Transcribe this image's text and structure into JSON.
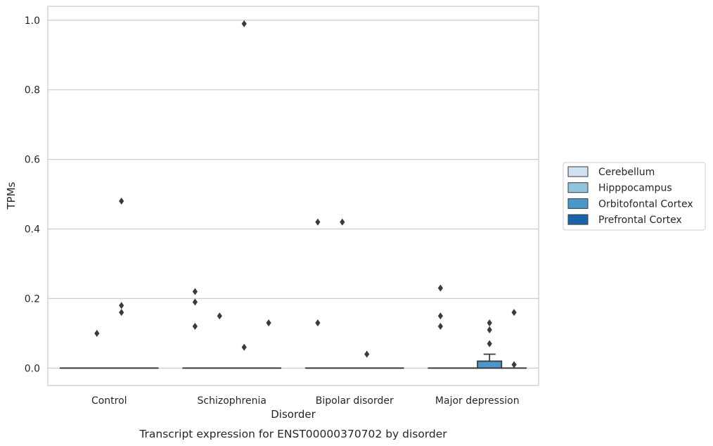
{
  "chart_data": {
    "type": "box",
    "title": "Transcript expression for ENST00000370702 by disorder",
    "xlabel": "Disorder",
    "ylabel": "TPMs",
    "ylim": [
      -0.05,
      1.04
    ],
    "yticks": [
      "0.0",
      "0.2",
      "0.4",
      "0.6",
      "0.8",
      "1.0"
    ],
    "grid": true,
    "legend_position": "right",
    "categories": [
      "Control",
      "Schizophrenia",
      "Bipolar disorder",
      "Major depression"
    ],
    "series": [
      {
        "name": "Cerebellum",
        "color": "#cfe1f2"
      },
      {
        "name": "Hipppocampus",
        "color": "#93c4de"
      },
      {
        "name": "Orbitofontal Cortex",
        "color": "#4a98c9"
      },
      {
        "name": "Prefrontal Cortex",
        "color": "#1764ab"
      }
    ],
    "boxes": [
      {
        "category": 0,
        "series": 0,
        "q1": 0,
        "median": 0,
        "q3": 0,
        "whisker_low": 0,
        "whisker_high": 0,
        "outliers": []
      },
      {
        "category": 0,
        "series": 1,
        "q1": 0,
        "median": 0,
        "q3": 0,
        "whisker_low": 0,
        "whisker_high": 0,
        "outliers": [
          0.1
        ]
      },
      {
        "category": 0,
        "series": 2,
        "q1": 0,
        "median": 0,
        "q3": 0,
        "whisker_low": 0,
        "whisker_high": 0,
        "outliers": [
          0.48,
          0.18,
          0.16
        ]
      },
      {
        "category": 0,
        "series": 3,
        "q1": 0,
        "median": 0,
        "q3": 0,
        "whisker_low": 0,
        "whisker_high": 0,
        "outliers": []
      },
      {
        "category": 1,
        "series": 0,
        "q1": 0,
        "median": 0,
        "q3": 0,
        "whisker_low": 0,
        "whisker_high": 0,
        "outliers": [
          0.22,
          0.19,
          0.12
        ]
      },
      {
        "category": 1,
        "series": 1,
        "q1": 0,
        "median": 0,
        "q3": 0,
        "whisker_low": 0,
        "whisker_high": 0,
        "outliers": [
          0.15
        ]
      },
      {
        "category": 1,
        "series": 2,
        "q1": 0,
        "median": 0,
        "q3": 0,
        "whisker_low": 0,
        "whisker_high": 0,
        "outliers": [
          0.99,
          0.06
        ]
      },
      {
        "category": 1,
        "series": 3,
        "q1": 0,
        "median": 0,
        "q3": 0,
        "whisker_low": 0,
        "whisker_high": 0,
        "outliers": [
          0.13
        ]
      },
      {
        "category": 2,
        "series": 0,
        "q1": 0,
        "median": 0,
        "q3": 0,
        "whisker_low": 0,
        "whisker_high": 0,
        "outliers": [
          0.42,
          0.13
        ]
      },
      {
        "category": 2,
        "series": 1,
        "q1": 0,
        "median": 0,
        "q3": 0,
        "whisker_low": 0,
        "whisker_high": 0,
        "outliers": [
          0.42
        ]
      },
      {
        "category": 2,
        "series": 2,
        "q1": 0,
        "median": 0,
        "q3": 0,
        "whisker_low": 0,
        "whisker_high": 0,
        "outliers": [
          0.04
        ]
      },
      {
        "category": 2,
        "series": 3,
        "q1": 0,
        "median": 0,
        "q3": 0,
        "whisker_low": 0,
        "whisker_high": 0,
        "outliers": []
      },
      {
        "category": 3,
        "series": 0,
        "q1": 0,
        "median": 0,
        "q3": 0,
        "whisker_low": 0,
        "whisker_high": 0,
        "outliers": [
          0.23,
          0.15,
          0.12
        ]
      },
      {
        "category": 3,
        "series": 1,
        "q1": 0,
        "median": 0,
        "q3": 0,
        "whisker_low": 0,
        "whisker_high": 0,
        "outliers": []
      },
      {
        "category": 3,
        "series": 2,
        "q1": 0,
        "median": 0,
        "q3": 0.02,
        "whisker_low": 0,
        "whisker_high": 0.04,
        "outliers": [
          0.13,
          0.11,
          0.07
        ]
      },
      {
        "category": 3,
        "series": 3,
        "q1": 0,
        "median": 0,
        "q3": 0,
        "whisker_low": 0,
        "whisker_high": 0,
        "outliers": [
          0.16,
          0.01
        ]
      }
    ]
  }
}
